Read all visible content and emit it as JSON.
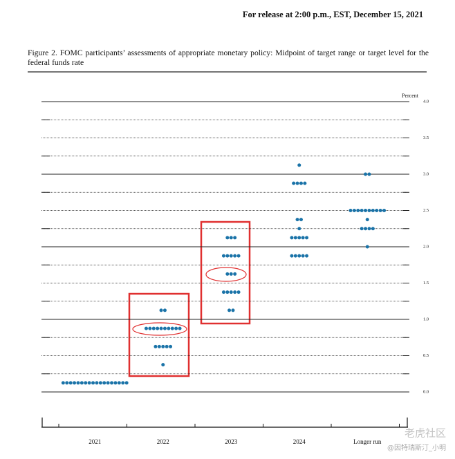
{
  "header": "For release at 2:00 p.m., EST, December 15, 2021",
  "watermark": [
    "老虎社区",
    "@因特瑞斯汀_小明"
  ],
  "chart_data": {
    "type": "dot",
    "title": "Figure 2.  FOMC participants’ assessments of appropriate monetary policy: Midpoint of target range or target level for the federal funds rate",
    "ylabel": "Percent",
    "categories": [
      "2021",
      "2022",
      "2023",
      "2024",
      "Longer run"
    ],
    "values": [
      [
        [
          0.125,
          18
        ]
      ],
      [
        [
          0.375,
          1
        ],
        [
          0.625,
          5
        ],
        [
          0.875,
          10
        ],
        [
          1.125,
          2
        ]
      ],
      [
        [
          1.125,
          2
        ],
        [
          1.375,
          5
        ],
        [
          1.625,
          3
        ],
        [
          1.875,
          5
        ],
        [
          2.125,
          3
        ]
      ],
      [
        [
          1.875,
          5
        ],
        [
          2.125,
          5
        ],
        [
          2.25,
          1
        ],
        [
          2.375,
          2
        ],
        [
          2.875,
          4
        ],
        [
          3.125,
          1
        ]
      ],
      [
        [
          2.0,
          1
        ],
        [
          2.25,
          4
        ],
        [
          2.375,
          1
        ],
        [
          2.5,
          10
        ],
        [
          3.0,
          2
        ]
      ]
    ],
    "color": "#1a73a8",
    "ylim": [
      0,
      4
    ],
    "yticks": [
      {
        "value": 0,
        "label": "0.0"
      },
      0.5,
      {
        "value": 1,
        "label": "1.0"
      },
      1.5,
      {
        "value": 2,
        "label": "2.0"
      },
      2.5,
      {
        "value": 3,
        "label": "3.0"
      },
      3.5,
      {
        "value": 4,
        "label": "4.0"
      }
    ],
    "yminorticks": [
      0.25,
      0.75,
      1.25,
      1.75,
      2.25,
      2.75,
      3.25,
      3.75
    ],
    "grid": true
  }
}
